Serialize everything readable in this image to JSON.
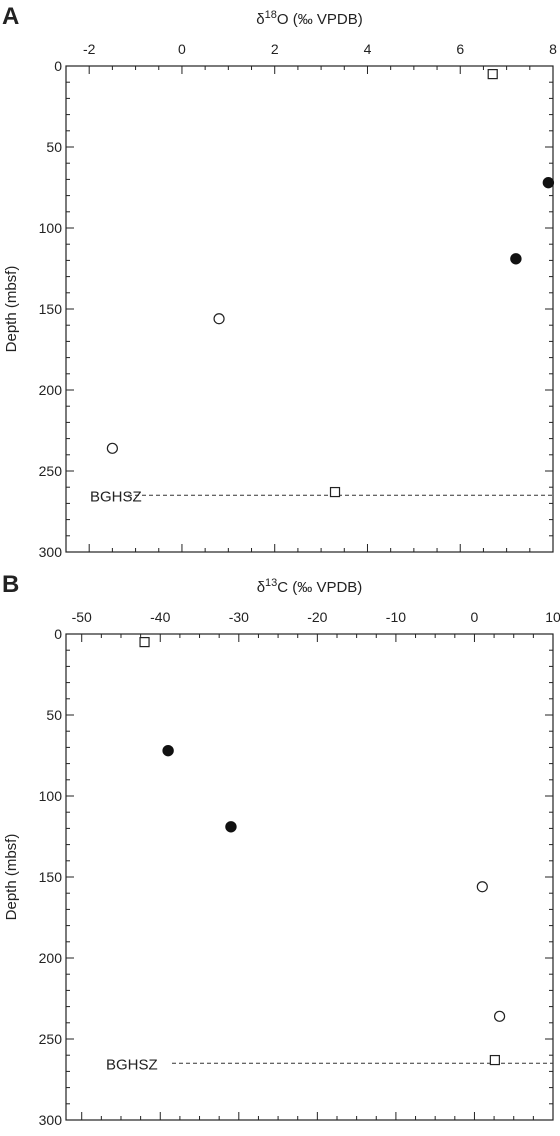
{
  "chart_data": [
    {
      "panel": "A",
      "type": "scatter",
      "xlabel": "δ18O (‰ VPDB)",
      "xlabel_parts": {
        "pre": "δ",
        "sup": "18",
        "post": "O (‰ VPDB)"
      },
      "ylabel": "Depth (mbsf)",
      "xlim": [
        -2.5,
        8
      ],
      "ylim": [
        0,
        300
      ],
      "y_inverted": true,
      "x_axis_position": "top",
      "x_ticks": [
        -2,
        0,
        2,
        4,
        6,
        8
      ],
      "x_tick_labels": [
        "-2",
        "0",
        "2",
        "4",
        "6",
        "8"
      ],
      "y_ticks": [
        0,
        50,
        100,
        150,
        200,
        250,
        300
      ],
      "y_tick_labels": [
        "0",
        "50",
        "100",
        "150",
        "200",
        "250",
        "300"
      ],
      "series": [
        {
          "marker": "square-open",
          "points": [
            {
              "x": 6.7,
              "y": 5
            },
            {
              "x": 3.3,
              "y": 263
            }
          ]
        },
        {
          "marker": "circle-filled",
          "points": [
            {
              "x": 7.9,
              "y": 72
            },
            {
              "x": 7.2,
              "y": 119
            }
          ]
        },
        {
          "marker": "circle-open",
          "points": [
            {
              "x": 0.8,
              "y": 156
            },
            {
              "x": -1.5,
              "y": 236
            }
          ]
        }
      ],
      "reference_line": {
        "y": 265,
        "label": "BGHSZ"
      }
    },
    {
      "panel": "B",
      "type": "scatter",
      "xlabel": "δ13C (‰ VPDB)",
      "xlabel_parts": {
        "pre": "δ",
        "sup": "13",
        "post": "C (‰ VPDB)"
      },
      "ylabel": "Depth (mbsf)",
      "xlim": [
        -52,
        10
      ],
      "ylim": [
        0,
        300
      ],
      "y_inverted": true,
      "x_axis_position": "top",
      "x_ticks": [
        -50,
        -40,
        -30,
        -20,
        -10,
        0,
        10
      ],
      "x_tick_labels": [
        "-50",
        "-40",
        "-30",
        "-20",
        "-10",
        "0",
        "10"
      ],
      "y_ticks": [
        0,
        50,
        100,
        150,
        200,
        250,
        300
      ],
      "y_tick_labels": [
        "0",
        "50",
        "100",
        "150",
        "200",
        "250",
        "300"
      ],
      "series": [
        {
          "marker": "square-open",
          "points": [
            {
              "x": -42,
              "y": 5
            },
            {
              "x": 2.6,
              "y": 263
            }
          ]
        },
        {
          "marker": "circle-filled",
          "points": [
            {
              "x": -39,
              "y": 72
            },
            {
              "x": -31,
              "y": 119
            }
          ]
        },
        {
          "marker": "circle-open",
          "points": [
            {
              "x": 1,
              "y": 156
            },
            {
              "x": 3.2,
              "y": 236
            }
          ]
        }
      ],
      "reference_line": {
        "y": 265,
        "label": "BGHSZ"
      }
    }
  ]
}
